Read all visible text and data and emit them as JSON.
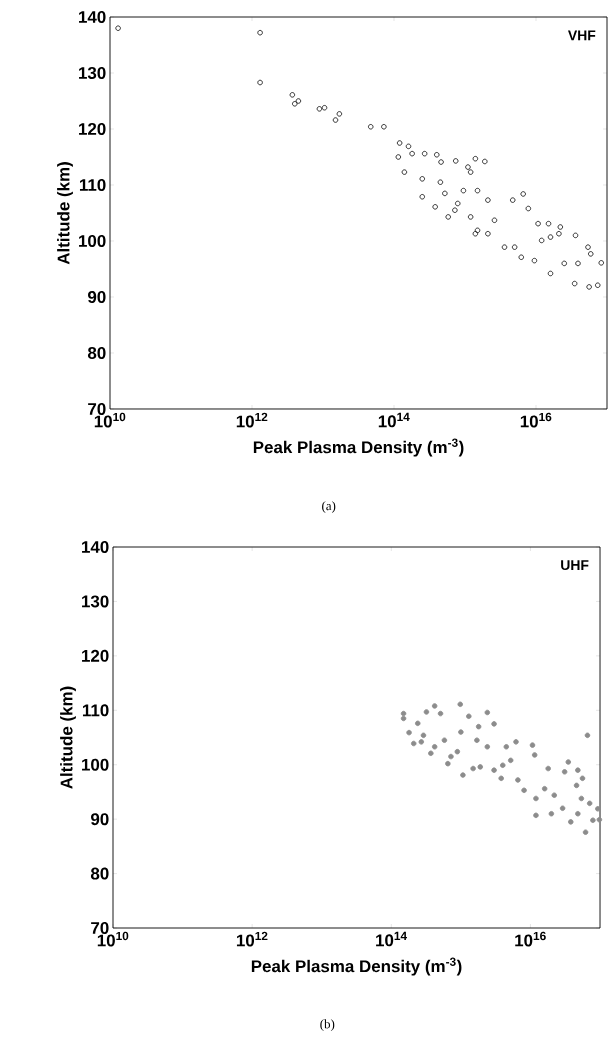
{
  "chart_data": [
    {
      "type": "scatter",
      "xlabel": "Peak Plasma Density (m$^{-3}$)",
      "ylabel": "Altitude (km)",
      "log": "x",
      "marker": "circle",
      "annotations": [
        "VHF",
        "(a)"
      ],
      "xlim": [
        10000000000.0,
        1e+17
      ],
      "ylim": [
        70,
        140
      ],
      "xticks": [
        {
          "value": 10000000000.0,
          "label": "10$^{10}$"
        },
        {
          "value": 1000000000000.0,
          "label": "10$^{12}$"
        },
        {
          "value": 100000000000000.0,
          "label": "10$^{14}$"
        },
        {
          "value": 1e+16,
          "label": "10$^{16}$"
        }
      ],
      "yticks": [
        70,
        80,
        90,
        100,
        110,
        120,
        130,
        140
      ],
      "series": [
        {
          "color": "#1a1a1a",
          "x": [
            13000000000.0,
            1300000000000.0,
            1300000000000.0,
            3700000000000.0,
            4000000000000.0,
            4500000000000.0,
            8900000000000.0,
            10500000000000.0,
            15000000000000.0,
            17000000000000.0,
            47000000000000.0,
            72000000000000.0,
            120000000000000.0,
            160000000000000.0,
            115000000000000.0,
            180000000000000.0,
            270000000000000.0,
            400000000000000.0,
            140000000000000.0,
            250000000000000.0,
            460000000000000.0,
            740000000000000.0,
            1100000000000000.0,
            1400000000000000.0,
            1900000000000000.0,
            1200000000000000.0,
            450000000000000.0,
            250000000000000.0,
            380000000000000.0,
            580000000000000.0,
            790000000000000.0,
            950000000000000.0,
            1500000000000000.0,
            1200000000000000.0,
            1400000000000000.0,
            2100000000000000.0,
            2600000000000000.0,
            2100000000000000.0,
            3600000000000000.0,
            4700000000000000.0,
            6600000000000000.0,
            5000000000000000.0,
            7800000000000000.0,
            6200000000000000.0,
            1.07e+16,
            1.5e+16,
            1.2e+16,
            1.6e+16,
            2.2e+16,
            2.1e+16,
            3.6e+16,
            5.4e+16,
            5.9e+16,
            8.3e+16,
            1.6e+16,
            3.5e+16,
            5.6e+16,
            7.4e+16,
            3.9e+16,
            2.5e+16,
            9500000000000000.0,
            720000000000000.0,
            1500000000000000.0,
            520000000000000.0
          ],
          "values": [
            138.0,
            137.2,
            128.3,
            126.1,
            124.5,
            125.0,
            123.6,
            123.8,
            121.6,
            122.7,
            120.4,
            120.4,
            117.5,
            116.9,
            115.0,
            115.6,
            115.6,
            115.4,
            112.3,
            111.1,
            114.1,
            114.3,
            113.2,
            114.7,
            114.2,
            112.3,
            110.5,
            107.9,
            106.1,
            104.3,
            106.7,
            109.0,
            109.0,
            104.3,
            101.3,
            101.3,
            103.7,
            107.3,
            98.9,
            107.3,
            108.4,
            98.9,
            105.8,
            97.1,
            103.1,
            103.1,
            100.1,
            100.7,
            102.5,
            101.3,
            101.0,
            98.9,
            97.7,
            96.1,
            94.2,
            92.4,
            91.8,
            92.1,
            96.0,
            96.0,
            96.5,
            105.5,
            101.9,
            108.5
          ]
        }
      ]
    },
    {
      "type": "scatter",
      "xlabel": "Peak Plasma Density (m$^{-3}$)",
      "ylabel": "Altitude (km)",
      "log": "x",
      "marker": "circle",
      "annotations": [
        "UHF",
        "(b)"
      ],
      "xlim": [
        10000000000.0,
        1e+17
      ],
      "ylim": [
        70,
        140
      ],
      "xticks": [
        {
          "value": 10000000000.0,
          "label": "10$^{10}$"
        },
        {
          "value": 1000000000000.0,
          "label": "10$^{12}$"
        },
        {
          "value": 100000000000000.0,
          "label": "10$^{14}$"
        },
        {
          "value": 1e+16,
          "label": "10$^{16}$"
        }
      ],
      "yticks": [
        70,
        80,
        90,
        100,
        110,
        120,
        130,
        140
      ],
      "series": [
        {
          "color": "#8c8c8c",
          "x": [
            150000000000000.0,
            150000000000000.0,
            320000000000000.0,
            420000000000000.0,
            980000000000000.0,
            510000000000000.0,
            1300000000000000.0,
            2400000000000000.0,
            3000000000000000.0,
            180000000000000.0,
            240000000000000.0,
            210000000000000.0,
            290000000000000.0,
            420000000000000.0,
            580000000000000.0,
            650000000000000.0,
            890000000000000.0,
            1070000000000000.0,
            1000000000000000.0,
            1800000000000000.0,
            1700000000000000.0,
            1900000000000000.0,
            2400000000000000.0,
            3000000000000000.0,
            3800000000000000.0,
            4500000000000000.0,
            5200000000000000.0,
            6200000000000000.0,
            6600000000000000.0,
            8100000000000000.0,
            1.07e+16,
            1.15e+16,
            1.2e+16,
            1.2e+16,
            1.8e+16,
            1.6e+16,
            2e+16,
            2.2e+16,
            2.9e+16,
            3.5e+16,
            3.1e+16,
            3.8e+16,
            4.8e+16,
            5.6e+16,
            4.6e+16,
            4.8e+16,
            5.4e+16,
            6.6e+16,
            7.1e+16,
            6.2e+16,
            9.3e+16,
            7.9e+16,
            9.8e+16,
            270000000000000.0,
            370000000000000.0,
            720000000000000.0,
            1500000000000000.0,
            4000000000000000.0
          ],
          "values": [
            109.4,
            108.5,
            109.7,
            110.8,
            111.1,
            109.4,
            108.9,
            109.6,
            107.5,
            105.9,
            107.6,
            103.9,
            105.4,
            103.3,
            104.5,
            100.2,
            102.4,
            98.1,
            106.0,
            107.0,
            104.5,
            99.6,
            103.3,
            99.0,
            97.5,
            103.3,
            100.8,
            104.2,
            97.2,
            95.3,
            103.6,
            101.8,
            93.8,
            90.7,
            99.3,
            95.6,
            91.0,
            94.4,
            92.0,
            100.5,
            98.7,
            89.5,
            99.0,
            97.5,
            96.2,
            91.0,
            93.8,
            105.4,
            92.9,
            87.6,
            91.9,
            89.8,
            89.9,
            104.2,
            102.1,
            101.5,
            99.3,
            99.9
          ]
        }
      ]
    }
  ]
}
